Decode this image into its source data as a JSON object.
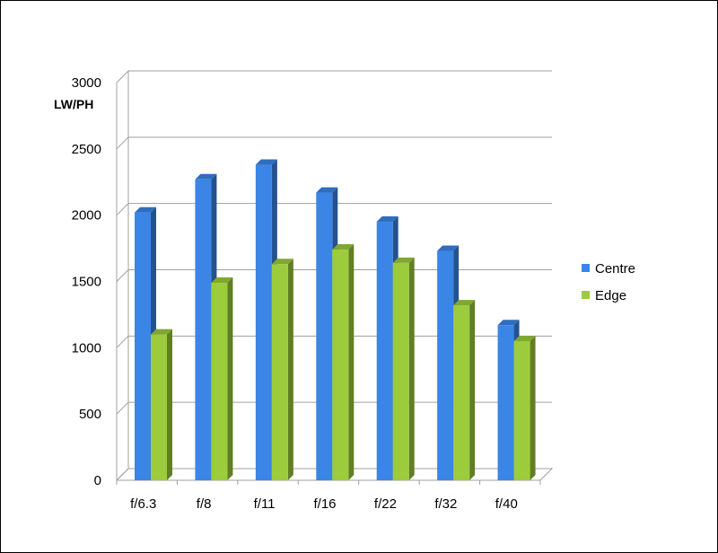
{
  "chart_data": {
    "type": "bar",
    "title": "",
    "xlabel": "",
    "ylabel": "LW/PH",
    "categories": [
      "f/6.3",
      "f/8",
      "f/11",
      "f/16",
      "f/22",
      "f/32",
      "f/40"
    ],
    "series": [
      {
        "name": "Centre",
        "values": [
          2020,
          2270,
          2380,
          2170,
          1950,
          1730,
          1170
        ],
        "color": "#3a85e6"
      },
      {
        "name": "Edge",
        "values": [
          1100,
          1490,
          1630,
          1740,
          1640,
          1320,
          1050
        ],
        "color": "#9ccc3c"
      }
    ],
    "ylim": [
      0,
      3000
    ],
    "yticks": [
      "0",
      "500",
      "1000",
      "1500",
      "2000",
      "2500",
      "3000"
    ],
    "grid": true,
    "legend_position": "right",
    "style": "3d-clustered-column"
  }
}
